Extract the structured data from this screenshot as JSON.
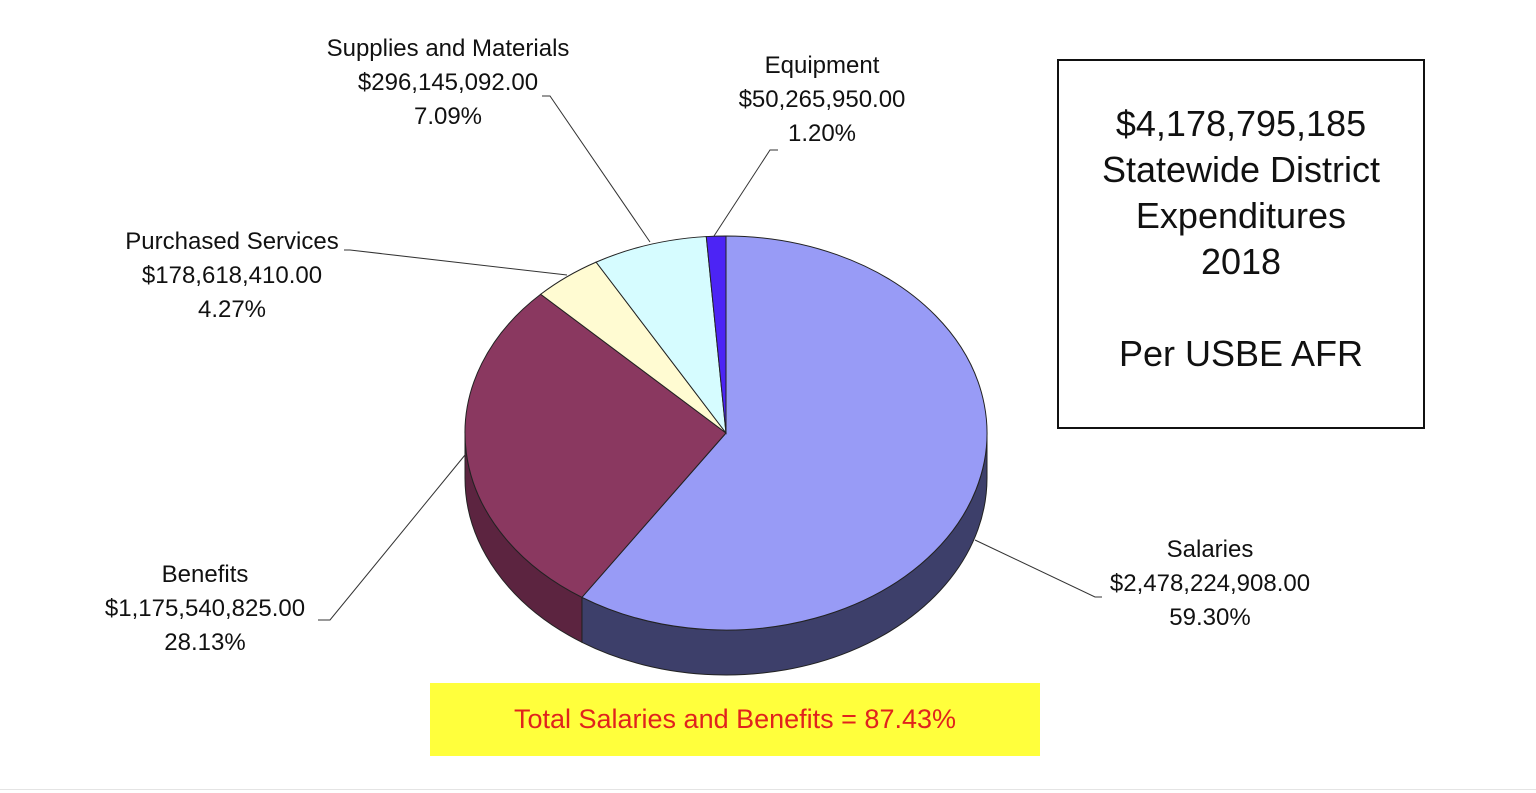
{
  "chart_data": {
    "type": "pie",
    "style": "3d",
    "slices": [
      {
        "label": "Salaries",
        "value": "$2,478,224,908.00",
        "amount": 2478224908.0,
        "percent": "59.30%",
        "color": "#989bf6",
        "side_color": "#3d3f6a"
      },
      {
        "label": "Benefits",
        "value": "$1,175,540,825.00",
        "amount": 1175540825.0,
        "percent": "28.13%",
        "color": "#8a3860",
        "side_color": "#5c2440"
      },
      {
        "label": "Purchased Services",
        "value": "$178,618,410.00",
        "amount": 178618410.0,
        "percent": "4.27%",
        "color": "#fffbd2",
        "side_color": "#c8c49a"
      },
      {
        "label": "Supplies and Materials",
        "value": "$296,145,092.00",
        "amount": 296145092.0,
        "percent": "7.09%",
        "color": "#d6fcff",
        "side_color": "#9fc0c2"
      },
      {
        "label": "Equipment",
        "value": "$50,265,950.00",
        "amount": 50265950.0,
        "percent": "1.20%",
        "color": "#4c24f5",
        "side_color": "#2a1496"
      }
    ]
  },
  "info_box": {
    "line1": "$4,178,795,185",
    "line2": "Statewide District",
    "line3": "Expenditures",
    "line4": "2018",
    "line5": "Per USBE AFR"
  },
  "total_banner": "Total Salaries and Benefits = 87.43%"
}
